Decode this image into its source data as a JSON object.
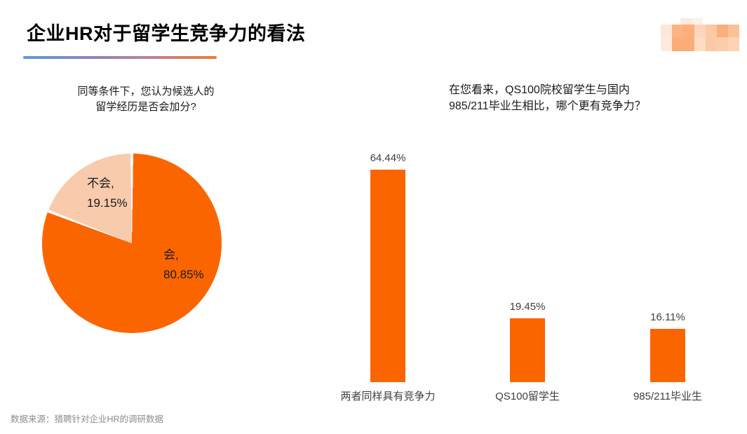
{
  "slide": {
    "title": "企业HR对于留学生竞争力的看法",
    "source_note": "数据来源：猎聘针对企业HR的调研数据"
  },
  "colors": {
    "brand_orange": "#FB6500",
    "light_peach": "#F8CBAD",
    "underline_gradient_start": "#5B9BD5",
    "underline_gradient_end": "#ED7D31",
    "question_text": "#1A1A1A",
    "label_gray": "#3F3F3F",
    "source_gray": "#8C8C8C"
  },
  "logo": {
    "name": "blurred-logo",
    "rows": [
      [
        "",
        "#fceadd",
        "#fdf0e7",
        "",
        "",
        "",
        ""
      ],
      [
        "#fce7d8",
        "#fcb384",
        "#fcae7b",
        "#fcd6ba",
        "#fbc9a4",
        "#fbaf7d",
        "#fbc096"
      ],
      [
        "#fdebde",
        "#fbad79",
        "#fbad79",
        "#fcdcc5",
        "#fbc9a6",
        "#fccda9",
        "#fcd3b4"
      ]
    ]
  },
  "chart_data": [
    {
      "type": "pie",
      "title": "同等条件下，您认为候选人的留学经历是否会加分?",
      "title_lines": [
        "同等条件下，您认为候选人的",
        "留学经历是否会加分?"
      ],
      "start_angle_deg": 0,
      "direction": "clockwise",
      "legend": "none",
      "labels_position": "inside",
      "slices": [
        {
          "label": "会",
          "value": 80.85,
          "display_lines": [
            "会,",
            "80.85%"
          ],
          "color": "#FB6500"
        },
        {
          "label": "不会",
          "value": 19.15,
          "display_lines": [
            "不会,",
            "19.15%"
          ],
          "color": "#F8CBAD"
        }
      ]
    },
    {
      "type": "bar",
      "title": "在您看来，QS100院校留学生与国内985/211毕业生相比，哪个更有竞争力？",
      "title_lines": [
        "在您看来，QS100院校留学生与国内",
        "985/211毕业生相比，哪个更有竞争力？"
      ],
      "categories": [
        "两者同样具有竞争力",
        "QS100留学生",
        "985/211毕业生"
      ],
      "values": [
        64.44,
        19.45,
        16.11
      ],
      "value_labels": [
        "64.44%",
        "19.45%",
        "16.11%"
      ],
      "bar_color": "#FB6500",
      "ylim": [
        0,
        70
      ],
      "grid": false,
      "axes_visible": false,
      "value_labels_position": "above bars"
    }
  ]
}
